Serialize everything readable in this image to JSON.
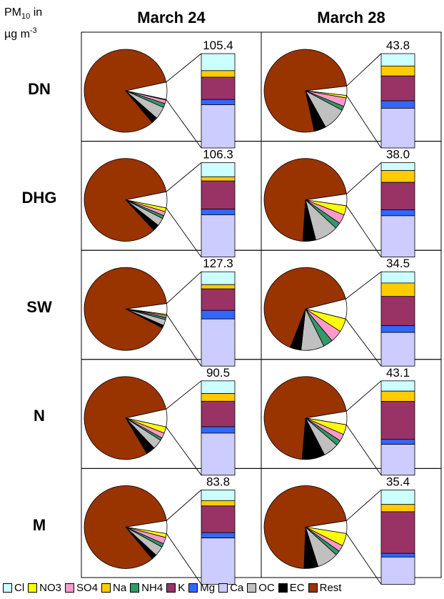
{
  "unit_label": {
    "prefix": "PM",
    "sub": "10",
    "mid": " in",
    "line2": "µg m",
    "sup": "-3"
  },
  "columns": [
    "March 24",
    "March 28"
  ],
  "rows": [
    "DN",
    "DHG",
    "SW",
    "N",
    "M"
  ],
  "colors": {
    "Cl": "#ccffff",
    "NO3": "#ffff00",
    "SO4": "#ff99cc",
    "Na": "#ffcc00",
    "NH4": "#339966",
    "K": "#993366",
    "Mg": "#3366ff",
    "Ca": "#ccccff",
    "OC": "#c0c0c0",
    "EC": "#000000",
    "Rest": "#993300"
  },
  "legend": [
    {
      "key": "Cl",
      "label": "Cl"
    },
    {
      "key": "NO3",
      "label": "NO3"
    },
    {
      "key": "SO4",
      "label": "SO4"
    },
    {
      "key": "Na",
      "label": "Na"
    },
    {
      "key": "NH4",
      "label": "NH4"
    },
    {
      "key": "K",
      "label": "K"
    },
    {
      "key": "Mg",
      "label": "Mg"
    },
    {
      "key": "Ca",
      "label": "Ca"
    },
    {
      "key": "OC",
      "label": "OC"
    },
    {
      "key": "EC",
      "label": "EC"
    },
    {
      "key": "Rest",
      "label": "Rest"
    }
  ],
  "chart_data": {
    "type": "pie",
    "description_units": "percent of PM10 mass; total PM10 in µg m-3",
    "components_pie": [
      "NO3",
      "SO4",
      "NH4",
      "OC",
      "EC",
      "Rest"
    ],
    "components_bar_stack_top_to_bottom": [
      "Cl",
      "Na",
      "K",
      "Mg",
      "Ca"
    ],
    "panels": [
      {
        "site": "DN",
        "date": "March 24",
        "total": "105.4",
        "pie": {
          "NO3": 0.3,
          "SO4": 1.5,
          "NH4": 1.7,
          "OC": 5.2,
          "EC": 2.6,
          "Rest": 88.7
        },
        "bar": {
          "Cl": 1.3,
          "Na": 0.5,
          "K": 1.7,
          "Mg": 0.4,
          "Ca": 3.3
        }
      },
      {
        "site": "DN",
        "date": "March 28",
        "total": "43.8",
        "pie": {
          "NO3": 1.0,
          "SO4": 3.5,
          "NH4": 1.7,
          "OC": 9.5,
          "EC": 4.8,
          "Rest": 79.5
        },
        "bar": {
          "Cl": 0.5,
          "Na": 0.4,
          "K": 1.0,
          "Mg": 0.3,
          "Ca": 1.6
        }
      },
      {
        "site": "DHG",
        "date": "March 24",
        "total": "106.3",
        "pie": {
          "NO3": 1.6,
          "SO4": 1.7,
          "NH4": 1.3,
          "OC": 3.3,
          "EC": 2.7,
          "Rest": 89.4
        },
        "bar": {
          "Cl": 1.0,
          "Na": 0.3,
          "K": 2.0,
          "Mg": 0.4,
          "Ca": 3.0
        }
      },
      {
        "site": "DHG",
        "date": "March 28",
        "total": "38.0",
        "pie": {
          "NO3": 3.8,
          "SO4": 3.8,
          "NH4": 2.5,
          "OC": 9.5,
          "EC": 5.3,
          "Rest": 75.1
        },
        "bar": {
          "Cl": 0.4,
          "Na": 0.6,
          "K": 1.4,
          "Mg": 0.3,
          "Ca": 2.1
        }
      },
      {
        "site": "SW",
        "date": "March 24",
        "total": "127.3",
        "pie": {
          "NO3": 0.5,
          "SO4": 0.8,
          "NH4": 0.9,
          "OC": 2.4,
          "EC": 1.1,
          "Rest": 94.3
        },
        "bar": {
          "Cl": 0.6,
          "Na": 0.2,
          "K": 1.0,
          "Mg": 0.4,
          "Ca": 2.2
        }
      },
      {
        "site": "SW",
        "date": "March 28",
        "total": "34.5",
        "pie": {
          "NO3": 5.7,
          "SO4": 5.2,
          "NH4": 4.1,
          "OC": 9.8,
          "EC": 4.6,
          "Rest": 70.6
        },
        "bar": {
          "Cl": 1.0,
          "Na": 1.2,
          "K": 2.6,
          "Mg": 0.6,
          "Ca": 3.0
        }
      },
      {
        "site": "N",
        "date": "March 24",
        "total": "90.5",
        "pie": {
          "NO3": 2.7,
          "SO4": 2.2,
          "NH4": 1.1,
          "OC": 4.2,
          "EC": 3.7,
          "Rest": 86.1
        },
        "bar": {
          "Cl": 1.0,
          "Na": 0.6,
          "K": 2.0,
          "Mg": 0.5,
          "Ca": 3.3
        }
      },
      {
        "site": "N",
        "date": "March 28",
        "total": "43.1",
        "pie": {
          "NO3": 4.1,
          "SO4": 2.9,
          "NH4": 2.2,
          "OC": 6.4,
          "EC": 9.4,
          "Rest": 75.0
        },
        "bar": {
          "Cl": 0.6,
          "Na": 0.6,
          "K": 2.2,
          "Mg": 0.3,
          "Ca": 1.8
        }
      },
      {
        "site": "M",
        "date": "March 28",
        "total": "35.4",
        "pie": {
          "NO3": 5.2,
          "SO4": 2.6,
          "NH4": 1.9,
          "OC": 8.8,
          "EC": 5.8,
          "Rest": 75.7
        },
        "bar": {
          "Cl": 0.8,
          "Na": 0.4,
          "K": 2.3,
          "Mg": 0.2,
          "Ca": 1.5
        }
      },
      {
        "site": "M",
        "date": "March 24",
        "total": "83.8",
        "pie": {
          "NO3": 1.6,
          "SO4": 2.7,
          "NH4": 1.5,
          "OC": 4.0,
          "EC": 2.2,
          "Rest": 88.0
        },
        "bar": {
          "Cl": 0.6,
          "Na": 0.3,
          "K": 1.5,
          "Mg": 0.3,
          "Ca": 2.6
        }
      }
    ]
  }
}
